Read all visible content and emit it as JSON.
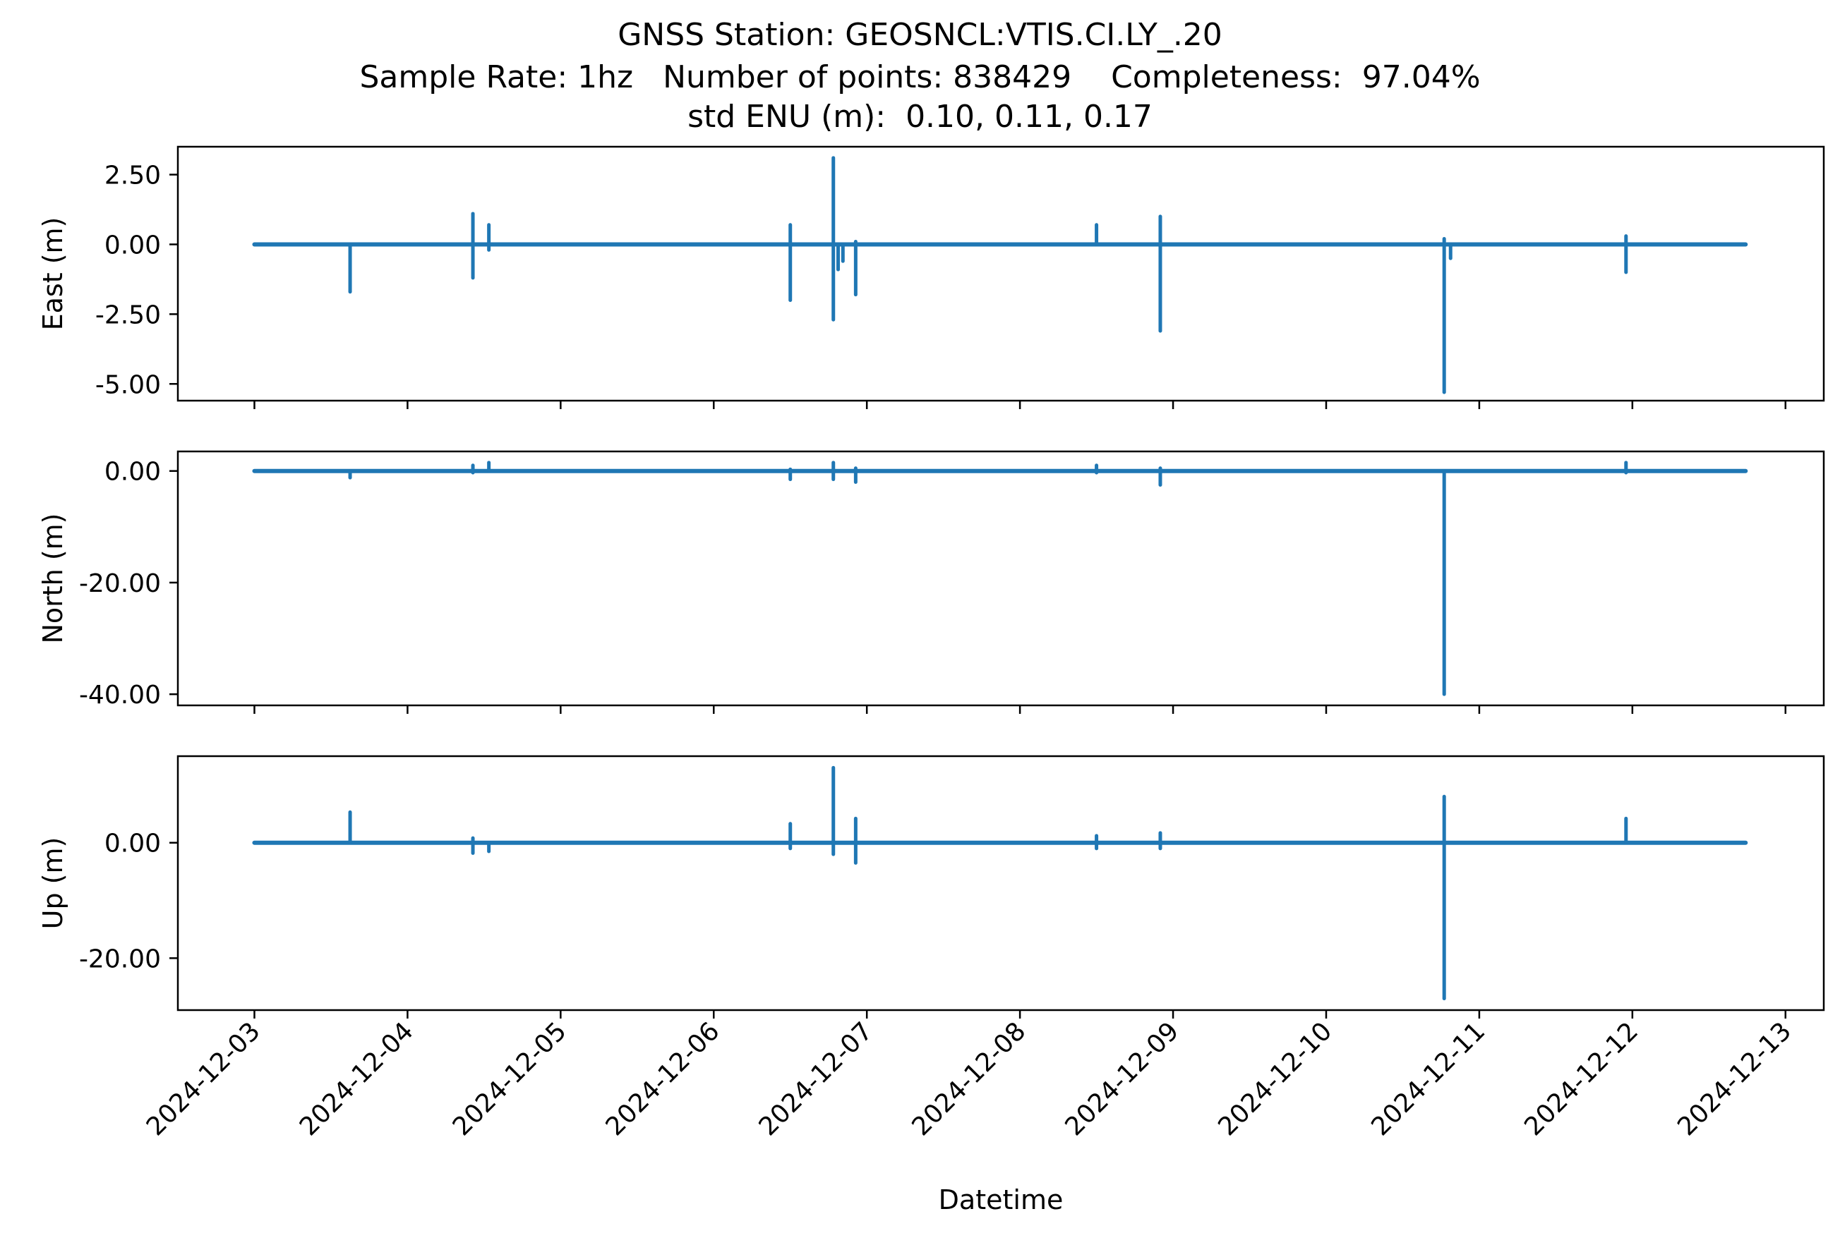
{
  "figure": {
    "title_lines": [
      "GNSS Station: GEOSNCL:VTIS.CI.LY_.20",
      "Sample Rate: 1hz   Number of points: 838429    Completeness:  97.04%",
      "std ENU (m):  0.10, 0.11, 0.17"
    ],
    "xlabel": "Datetime",
    "line_color": "#1f77b4"
  },
  "chart_data": [
    {
      "type": "line",
      "name": "east",
      "ylabel": "East (m)",
      "ylim": [
        -5.6,
        3.5
      ],
      "yticks": [
        2.5,
        0.0,
        -2.5,
        -5.0
      ],
      "ytick_labels": [
        "2.50",
        "0.00",
        "-2.50",
        "-5.00"
      ],
      "xlim": [
        "2024-12-02T12:00",
        "2024-12-13T06:00"
      ],
      "xticks": [
        "2024-12-03",
        "2024-12-04",
        "2024-12-05",
        "2024-12-06",
        "2024-12-07",
        "2024-12-08",
        "2024-12-09",
        "2024-12-10",
        "2024-12-11",
        "2024-12-12",
        "2024-12-13"
      ],
      "show_xtick_labels": false,
      "data_range": [
        "2024-12-03T00:00",
        "2024-12-12T17:45"
      ],
      "baseline": 0.0,
      "spikes": [
        {
          "t": "2024-12-03T15:00",
          "min": -1.7,
          "max": 0.0
        },
        {
          "t": "2024-12-04T10:15",
          "min": -1.2,
          "max": 1.1
        },
        {
          "t": "2024-12-04T12:45",
          "min": -0.2,
          "max": 0.7
        },
        {
          "t": "2024-12-06T12:00",
          "min": -2.0,
          "max": 0.7
        },
        {
          "t": "2024-12-06T18:45",
          "min": -2.7,
          "max": 3.1
        },
        {
          "t": "2024-12-06T19:30",
          "min": -0.9,
          "max": 0.0
        },
        {
          "t": "2024-12-06T20:15",
          "min": -0.6,
          "max": 0.0
        },
        {
          "t": "2024-12-06T22:15",
          "min": -1.8,
          "max": 0.1
        },
        {
          "t": "2024-12-08T12:00",
          "min": 0.0,
          "max": 0.7
        },
        {
          "t": "2024-12-08T22:00",
          "min": -3.1,
          "max": 1.0
        },
        {
          "t": "2024-12-10T18:30",
          "min": -5.3,
          "max": 0.2
        },
        {
          "t": "2024-12-10T19:30",
          "min": -0.5,
          "max": 0.0
        },
        {
          "t": "2024-12-11T23:00",
          "min": -1.0,
          "max": 0.3
        }
      ]
    },
    {
      "type": "line",
      "name": "north",
      "ylabel": "North (m)",
      "ylim": [
        -42.0,
        3.5
      ],
      "yticks": [
        0.0,
        -20.0,
        -40.0
      ],
      "ytick_labels": [
        "0.00",
        "-20.00",
        "-40.00"
      ],
      "xlim": [
        "2024-12-02T12:00",
        "2024-12-13T06:00"
      ],
      "xticks": [
        "2024-12-03",
        "2024-12-04",
        "2024-12-05",
        "2024-12-06",
        "2024-12-07",
        "2024-12-08",
        "2024-12-09",
        "2024-12-10",
        "2024-12-11",
        "2024-12-12",
        "2024-12-13"
      ],
      "show_xtick_labels": false,
      "data_range": [
        "2024-12-03T00:00",
        "2024-12-12T17:45"
      ],
      "baseline": 0.0,
      "spikes": [
        {
          "t": "2024-12-03T15:00",
          "min": -1.2,
          "max": 0.0
        },
        {
          "t": "2024-12-04T10:15",
          "min": -0.3,
          "max": 1.0
        },
        {
          "t": "2024-12-04T12:45",
          "min": 0.0,
          "max": 1.5
        },
        {
          "t": "2024-12-06T12:00",
          "min": -1.5,
          "max": 0.3
        },
        {
          "t": "2024-12-06T18:45",
          "min": -1.5,
          "max": 1.5
        },
        {
          "t": "2024-12-06T22:15",
          "min": -2.0,
          "max": 0.5
        },
        {
          "t": "2024-12-08T12:00",
          "min": -0.3,
          "max": 1.0
        },
        {
          "t": "2024-12-08T22:00",
          "min": -2.5,
          "max": 0.5
        },
        {
          "t": "2024-12-10T18:30",
          "min": -40.0,
          "max": 0.0
        },
        {
          "t": "2024-12-11T23:00",
          "min": -0.3,
          "max": 1.5
        }
      ]
    },
    {
      "type": "line",
      "name": "up",
      "ylabel": "Up (m)",
      "ylim": [
        -29.0,
        15.0
      ],
      "yticks": [
        0.0,
        -20.0
      ],
      "ytick_labels": [
        "0.00",
        "-20.00"
      ],
      "xlim": [
        "2024-12-02T12:00",
        "2024-12-13T06:00"
      ],
      "xticks": [
        "2024-12-03",
        "2024-12-04",
        "2024-12-05",
        "2024-12-06",
        "2024-12-07",
        "2024-12-08",
        "2024-12-09",
        "2024-12-10",
        "2024-12-11",
        "2024-12-12",
        "2024-12-13"
      ],
      "xtick_labels": [
        "2024-12-03",
        "2024-12-04",
        "2024-12-05",
        "2024-12-06",
        "2024-12-07",
        "2024-12-08",
        "2024-12-09",
        "2024-12-10",
        "2024-12-11",
        "2024-12-12",
        "2024-12-13"
      ],
      "show_xtick_labels": true,
      "data_range": [
        "2024-12-03T00:00",
        "2024-12-12T17:45"
      ],
      "baseline": 0.0,
      "spikes": [
        {
          "t": "2024-12-03T15:00",
          "min": 0.0,
          "max": 5.3
        },
        {
          "t": "2024-12-04T10:15",
          "min": -1.8,
          "max": 0.8
        },
        {
          "t": "2024-12-04T12:45",
          "min": -1.5,
          "max": 0.0
        },
        {
          "t": "2024-12-06T12:00",
          "min": -1.0,
          "max": 3.3
        },
        {
          "t": "2024-12-06T18:45",
          "min": -2.0,
          "max": 13.0
        },
        {
          "t": "2024-12-06T22:15",
          "min": -3.5,
          "max": 4.2
        },
        {
          "t": "2024-12-08T12:00",
          "min": -1.0,
          "max": 1.2
        },
        {
          "t": "2024-12-08T22:00",
          "min": -1.0,
          "max": 1.7
        },
        {
          "t": "2024-12-10T18:30",
          "min": -27.0,
          "max": 8.0
        },
        {
          "t": "2024-12-11T23:00",
          "min": 0.0,
          "max": 4.2
        }
      ]
    }
  ]
}
